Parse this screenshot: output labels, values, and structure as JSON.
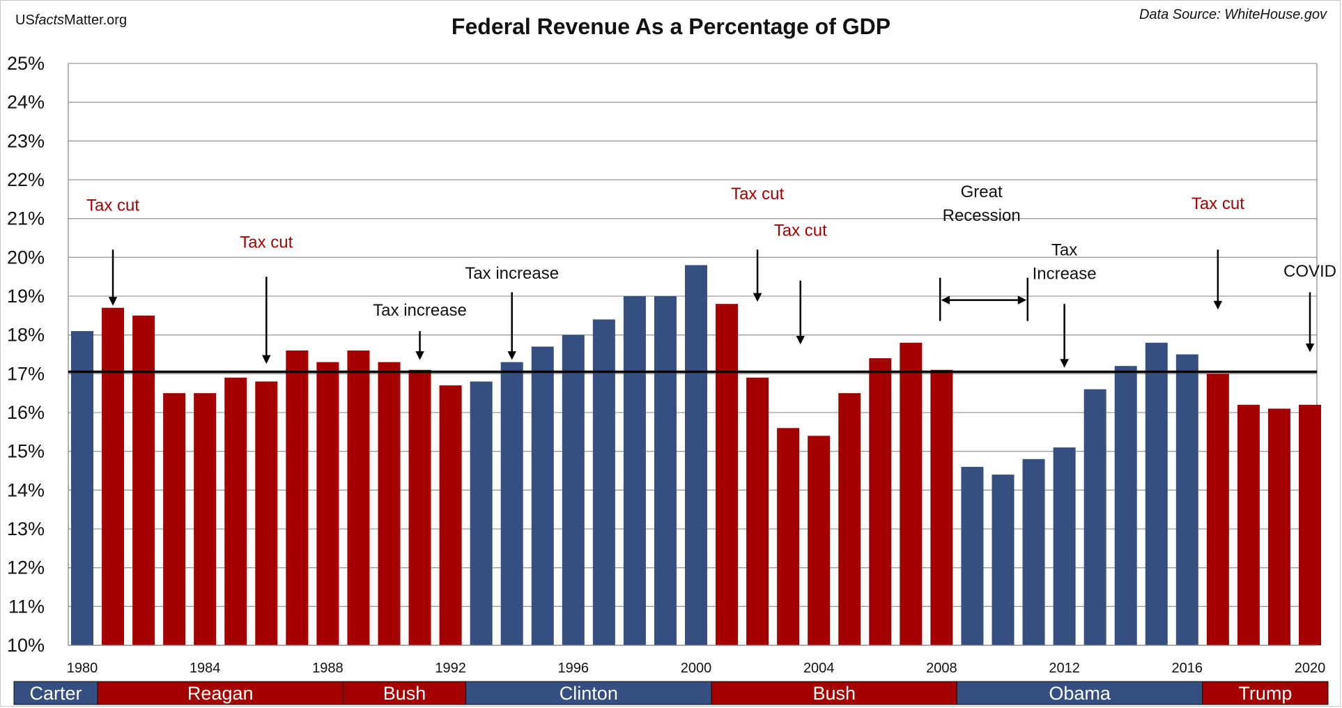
{
  "header": {
    "site_prefix": "US",
    "site_italic": "facts",
    "site_suffix": "Matter.org",
    "source": "Data Source: WhiteHouse.gov"
  },
  "chart_data": {
    "type": "bar",
    "title": "Federal Revenue As a Percentage of GDP",
    "xlabel": "",
    "ylabel": "",
    "ylim": [
      10,
      25
    ],
    "yticks": [
      "10%",
      "11%",
      "12%",
      "13%",
      "14%",
      "15%",
      "16%",
      "17%",
      "18%",
      "19%",
      "20%",
      "21%",
      "22%",
      "23%",
      "24%",
      "25%"
    ],
    "grid": true,
    "x": [
      1980,
      1981,
      1982,
      1983,
      1984,
      1985,
      1986,
      1987,
      1988,
      1989,
      1990,
      1991,
      1992,
      1993,
      1994,
      1995,
      1996,
      1997,
      1998,
      1999,
      2000,
      2001,
      2002,
      2003,
      2004,
      2005,
      2006,
      2007,
      2008,
      2009,
      2010,
      2011,
      2012,
      2013,
      2014,
      2015,
      2016,
      2017,
      2018,
      2019,
      2020
    ],
    "xtick_labels": [
      "1980",
      "1984",
      "1988",
      "1992",
      "1996",
      "2000",
      "2004",
      "2008",
      "2012",
      "2016",
      "2020"
    ],
    "values": [
      18.1,
      18.7,
      18.5,
      16.5,
      16.5,
      16.9,
      16.8,
      17.6,
      17.3,
      17.6,
      17.3,
      17.1,
      16.7,
      16.8,
      17.3,
      17.7,
      18.0,
      18.4,
      19.0,
      19.0,
      19.8,
      18.8,
      16.9,
      15.6,
      15.4,
      16.5,
      17.4,
      17.8,
      17.1,
      14.6,
      14.4,
      14.8,
      15.1,
      16.6,
      17.2,
      17.8,
      17.5,
      17.0,
      16.2,
      16.1,
      16.2
    ],
    "party": [
      "D",
      "R",
      "R",
      "R",
      "R",
      "R",
      "R",
      "R",
      "R",
      "R",
      "R",
      "R",
      "R",
      "D",
      "D",
      "D",
      "D",
      "D",
      "D",
      "D",
      "D",
      "R",
      "R",
      "R",
      "R",
      "R",
      "R",
      "R",
      "R",
      "D",
      "D",
      "D",
      "D",
      "D",
      "D",
      "D",
      "D",
      "R",
      "R",
      "R",
      "R"
    ],
    "colors": {
      "R": "#a50000",
      "D": "#354f80"
    },
    "average_line": 17.05,
    "presidents": [
      {
        "name": "Carter",
        "party": "D",
        "start": 1980,
        "end": 1980
      },
      {
        "name": "Reagan",
        "party": "R",
        "start": 1981,
        "end": 1988
      },
      {
        "name": "Bush",
        "party": "R",
        "start": 1989,
        "end": 1992
      },
      {
        "name": "Clinton",
        "party": "D",
        "start": 1993,
        "end": 2000
      },
      {
        "name": "Bush",
        "party": "R",
        "start": 2001,
        "end": 2008
      },
      {
        "name": "Obama",
        "party": "D",
        "start": 2009,
        "end": 2016
      },
      {
        "name": "Trump",
        "party": "R",
        "start": 2017,
        "end": 2020
      }
    ],
    "annotations": [
      {
        "lines": [
          "Tax cut"
        ],
        "color": "red",
        "year": 1981,
        "text_y": 21.2,
        "arrow_from": 20.2,
        "arrow_to": 18.8
      },
      {
        "lines": [
          "Tax cut"
        ],
        "color": "red",
        "year": 1986,
        "text_y": 20.25,
        "arrow_from": 19.5,
        "arrow_to": 17.3
      },
      {
        "lines": [
          "Tax increase"
        ],
        "color": "black",
        "year": 1991,
        "text_y": 18.5,
        "arrow_from": 18.1,
        "arrow_to": 17.4
      },
      {
        "lines": [
          "Tax increase"
        ],
        "color": "black",
        "year": 1994,
        "text_y": 19.45,
        "arrow_from": 19.1,
        "arrow_to": 17.4
      },
      {
        "lines": [
          "Tax cut"
        ],
        "color": "red",
        "year": 2002,
        "text_y": 21.5,
        "arrow_from": 20.2,
        "arrow_to": 18.9
      },
      {
        "lines": [
          "Tax cut"
        ],
        "color": "red",
        "year": 2003.4,
        "text_y": 20.55,
        "arrow_from": 19.4,
        "arrow_to": 17.8
      },
      {
        "lines": [
          "Great",
          "Recession"
        ],
        "color": "black",
        "year": 2009.3,
        "text_y": 21.55,
        "arrow_from": null,
        "arrow_to": null
      },
      {
        "lines": [
          "Tax",
          "Increase"
        ],
        "color": "black",
        "year": 2012,
        "text_y": 20.05,
        "arrow_from": 18.8,
        "arrow_to": 17.2
      },
      {
        "lines": [
          "Tax cut"
        ],
        "color": "red",
        "year": 2017,
        "text_y": 21.25,
        "arrow_from": 20.2,
        "arrow_to": 18.7
      },
      {
        "lines": [
          "COVID"
        ],
        "color": "black",
        "year": 2020,
        "text_y": 19.5,
        "arrow_from": 19.1,
        "arrow_to": 17.6
      }
    ],
    "recession_span": {
      "start": 2007.95,
      "end": 2010.8,
      "y": 18.9
    }
  }
}
